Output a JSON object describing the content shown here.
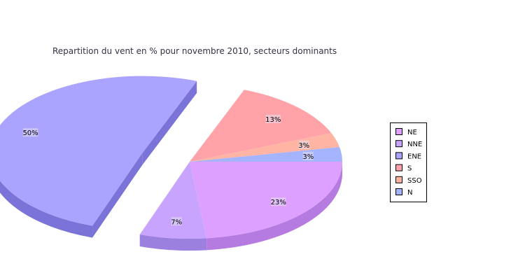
{
  "chart_data": {
    "type": "pie",
    "title": "Repartition du vent en % pour novembre 2010, secteurs dominants",
    "legend_position": "right",
    "exploded_slice": "ENE",
    "slices": [
      {
        "label": "NE",
        "value": 23,
        "value_label": "23%",
        "color": "#dda0ff",
        "side_color": "#b57be0"
      },
      {
        "label": "NNE",
        "value": 7,
        "value_label": "7%",
        "color": "#c8a4ff",
        "side_color": "#9b80e0"
      },
      {
        "label": "ENE",
        "value": 50,
        "value_label": "50%",
        "color": "#aba4ff",
        "side_color": "#7b74d8"
      },
      {
        "label": "S",
        "value": 13,
        "value_label": "13%",
        "color": "#ffa3a8",
        "side_color": "#df8388"
      },
      {
        "label": "SSO",
        "value": 3,
        "value_label": "3%",
        "color": "#ffb4a4",
        "side_color": "#dd9484"
      },
      {
        "label": "N",
        "value": 3,
        "value_label": "3%",
        "color": "#a4b4ff",
        "side_color": "#8494df"
      }
    ]
  }
}
